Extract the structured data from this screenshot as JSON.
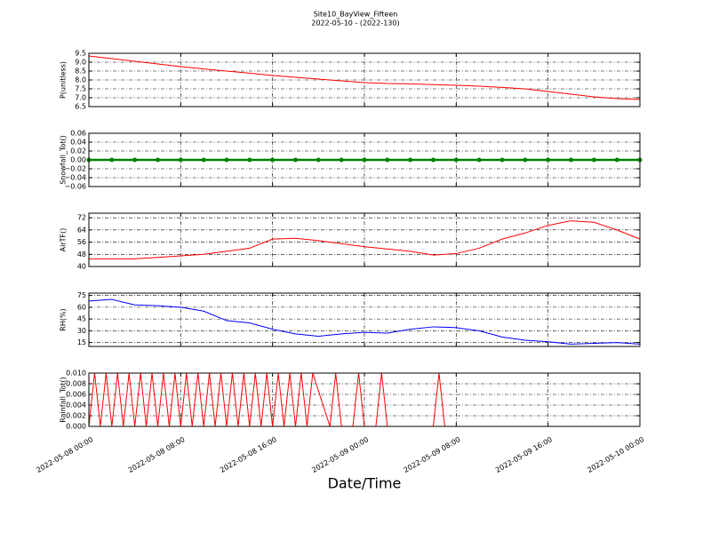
{
  "figure": {
    "title": "Site10_BayView_Fifteen",
    "subtitle": "2022-05-10 - (2022-130)",
    "xaxis": {
      "label": "Date/Time",
      "xlim": [
        "2022-05-08 00:00",
        "2022-05-10 00:00"
      ],
      "xticks": [
        "2022-05-08 00:00",
        "2022-05-08 08:00",
        "2022-05-08 16:00",
        "2022-05-09 00:00",
        "2022-05-09 08:00",
        "2022-05-09 16:00",
        "2022-05-10 00:00"
      ]
    }
  },
  "chart_data": [
    {
      "type": "line",
      "ylabel": "P(unitless)",
      "color": "#ff0000",
      "grid": true,
      "ylim": [
        6.5,
        9.5
      ],
      "yticks": [
        6.5,
        {
          "value": 7,
          "label": "7.0"
        },
        7.5,
        {
          "value": 8,
          "label": "8.0"
        },
        8.5,
        {
          "value": 9,
          "label": "9.0"
        },
        9.5
      ],
      "x": [
        "2022-05-08 00:00",
        "2022-05-08 02:00",
        "2022-05-08 04:00",
        "2022-05-08 06:00",
        "2022-05-08 08:00",
        "2022-05-08 10:00",
        "2022-05-08 12:00",
        "2022-05-08 14:00",
        "2022-05-08 16:00",
        "2022-05-08 18:00",
        "2022-05-08 20:00",
        "2022-05-08 22:00",
        "2022-05-09 00:00",
        "2022-05-09 02:00",
        "2022-05-09 04:00",
        "2022-05-09 06:00",
        "2022-05-09 08:00",
        "2022-05-09 10:00",
        "2022-05-09 12:00",
        "2022-05-09 14:00",
        "2022-05-09 16:00",
        "2022-05-09 18:00",
        "2022-05-09 20:00",
        "2022-05-09 22:00",
        "2022-05-10 00:00"
      ],
      "values": [
        9.35,
        9.2,
        9.05,
        8.9,
        8.75,
        8.62,
        8.5,
        8.38,
        8.25,
        8.15,
        8.05,
        7.95,
        7.85,
        7.8,
        7.78,
        7.74,
        7.7,
        7.65,
        7.58,
        7.5,
        7.35,
        7.2,
        7.05,
        6.95,
        6.9
      ]
    },
    {
      "type": "line",
      "ylabel": "Snowfall_Tot()",
      "color": "#008000",
      "markers": true,
      "grid": true,
      "ylim": [
        -0.06,
        0.06
      ],
      "yticks": [
        {
          "value": -0.06,
          "label": "−0.06"
        },
        {
          "value": -0.04,
          "label": "−0.04"
        },
        {
          "value": -0.02,
          "label": "−0.02"
        },
        {
          "value": 0,
          "label": "0.00"
        },
        0.02,
        0.04,
        0.06
      ],
      "x": [
        "2022-05-08 00:00",
        "2022-05-08 02:00",
        "2022-05-08 04:00",
        "2022-05-08 06:00",
        "2022-05-08 08:00",
        "2022-05-08 10:00",
        "2022-05-08 12:00",
        "2022-05-08 14:00",
        "2022-05-08 16:00",
        "2022-05-08 18:00",
        "2022-05-08 20:00",
        "2022-05-08 22:00",
        "2022-05-09 00:00",
        "2022-05-09 02:00",
        "2022-05-09 04:00",
        "2022-05-09 06:00",
        "2022-05-09 08:00",
        "2022-05-09 10:00",
        "2022-05-09 12:00",
        "2022-05-09 14:00",
        "2022-05-09 16:00",
        "2022-05-09 18:00",
        "2022-05-09 20:00",
        "2022-05-09 22:00",
        "2022-05-10 00:00"
      ],
      "values": [
        0,
        0,
        0,
        0,
        0,
        0,
        0,
        0,
        0,
        0,
        0,
        0,
        0,
        0,
        0,
        0,
        0,
        0,
        0,
        0,
        0,
        0,
        0,
        0,
        0
      ]
    },
    {
      "type": "line",
      "ylabel": "AirTF()",
      "color": "#ff0000",
      "grid": true,
      "ylim": [
        40,
        75
      ],
      "yticks": [
        40,
        48,
        56,
        64,
        72
      ],
      "x": [
        "2022-05-08 00:00",
        "2022-05-08 02:00",
        "2022-05-08 04:00",
        "2022-05-08 06:00",
        "2022-05-08 08:00",
        "2022-05-08 10:00",
        "2022-05-08 12:00",
        "2022-05-08 14:00",
        "2022-05-08 16:00",
        "2022-05-08 18:00",
        "2022-05-08 20:00",
        "2022-05-08 22:00",
        "2022-05-09 00:00",
        "2022-05-09 02:00",
        "2022-05-09 04:00",
        "2022-05-09 06:00",
        "2022-05-09 08:00",
        "2022-05-09 10:00",
        "2022-05-09 12:00",
        "2022-05-09 14:00",
        "2022-05-09 16:00",
        "2022-05-09 18:00",
        "2022-05-09 20:00",
        "2022-05-09 22:00",
        "2022-05-10 00:00"
      ],
      "values": [
        45,
        45,
        45,
        46,
        47,
        48,
        50,
        52,
        58,
        58.5,
        57,
        55,
        53,
        51.5,
        50,
        47.5,
        48.5,
        52,
        58,
        62,
        67,
        70,
        69,
        64,
        58
      ]
    },
    {
      "type": "line",
      "ylabel": "RH(%)",
      "color": "#0000ff",
      "grid": true,
      "ylim": [
        10,
        78
      ],
      "yticks": [
        15,
        30,
        45,
        60,
        75
      ],
      "x": [
        "2022-05-08 00:00",
        "2022-05-08 02:00",
        "2022-05-08 04:00",
        "2022-05-08 06:00",
        "2022-05-08 08:00",
        "2022-05-08 10:00",
        "2022-05-08 12:00",
        "2022-05-08 14:00",
        "2022-05-08 16:00",
        "2022-05-08 18:00",
        "2022-05-08 20:00",
        "2022-05-08 22:00",
        "2022-05-09 00:00",
        "2022-05-09 02:00",
        "2022-05-09 04:00",
        "2022-05-09 06:00",
        "2022-05-09 08:00",
        "2022-05-09 10:00",
        "2022-05-09 12:00",
        "2022-05-09 14:00",
        "2022-05-09 16:00",
        "2022-05-09 18:00",
        "2022-05-09 20:00",
        "2022-05-09 22:00",
        "2022-05-10 00:00"
      ],
      "values": [
        68,
        70,
        63,
        62,
        60,
        55,
        43,
        40,
        32,
        26,
        23,
        26,
        28,
        27,
        32,
        35,
        34,
        30,
        22,
        18,
        16,
        13,
        14,
        15,
        13
      ]
    },
    {
      "type": "line",
      "ylabel": "Rainfall_Tot()",
      "color": "#ff0000",
      "grid": true,
      "ylim": [
        0,
        0.01
      ],
      "yticks": [
        {
          "value": 0,
          "label": "0.000"
        },
        {
          "value": 0.002,
          "label": "0.002"
        },
        {
          "value": 0.004,
          "label": "0.004"
        },
        {
          "value": 0.006,
          "label": "0.006"
        },
        {
          "value": 0.008,
          "label": "0.008"
        },
        {
          "value": 0.01,
          "label": "0.010"
        }
      ],
      "x": [
        "2022-05-08 00:00",
        "2022-05-08 00:30",
        "2022-05-08 01:00",
        "2022-05-08 01:30",
        "2022-05-08 02:00",
        "2022-05-08 02:30",
        "2022-05-08 03:00",
        "2022-05-08 03:30",
        "2022-05-08 04:00",
        "2022-05-08 04:30",
        "2022-05-08 05:00",
        "2022-05-08 05:30",
        "2022-05-08 06:00",
        "2022-05-08 06:30",
        "2022-05-08 07:00",
        "2022-05-08 07:30",
        "2022-05-08 08:00",
        "2022-05-08 08:30",
        "2022-05-08 09:00",
        "2022-05-08 09:30",
        "2022-05-08 10:00",
        "2022-05-08 10:30",
        "2022-05-08 11:00",
        "2022-05-08 11:30",
        "2022-05-08 12:00",
        "2022-05-08 12:30",
        "2022-05-08 13:00",
        "2022-05-08 13:30",
        "2022-05-08 14:00",
        "2022-05-08 14:30",
        "2022-05-08 15:00",
        "2022-05-08 15:30",
        "2022-05-08 16:00",
        "2022-05-08 16:30",
        "2022-05-08 17:00",
        "2022-05-08 17:30",
        "2022-05-08 18:00",
        "2022-05-08 18:30",
        "2022-05-08 19:00",
        "2022-05-08 19:30",
        "2022-05-08 21:00",
        "2022-05-08 21:30",
        "2022-05-08 22:00",
        "2022-05-08 23:00",
        "2022-05-08 23:30",
        "2022-05-09 00:00",
        "2022-05-09 01:00",
        "2022-05-09 01:30",
        "2022-05-09 02:00",
        "2022-05-09 06:00",
        "2022-05-09 06:30",
        "2022-05-09 07:00",
        "2022-05-10 00:00"
      ],
      "values": [
        0,
        0.01,
        0,
        0.01,
        0,
        0.01,
        0,
        0.01,
        0,
        0.01,
        0,
        0.01,
        0,
        0.01,
        0,
        0.01,
        0,
        0.01,
        0,
        0.01,
        0,
        0.01,
        0,
        0.01,
        0,
        0.01,
        0,
        0.01,
        0,
        0.01,
        0,
        0.01,
        0,
        0.01,
        0,
        0.01,
        0,
        0.01,
        0,
        0.01,
        0,
        0.01,
        0,
        0,
        0.01,
        0,
        0,
        0.01,
        0,
        0,
        0.01,
        0,
        0
      ]
    }
  ]
}
